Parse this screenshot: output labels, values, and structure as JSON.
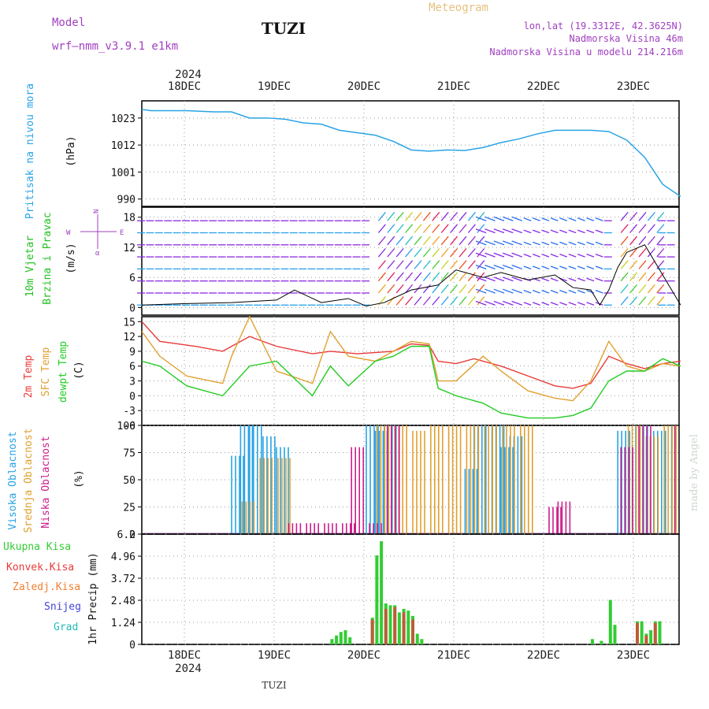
{
  "header": {
    "model_label": "Model",
    "model_name": "wrf–nmm_v3.9.1  e1km",
    "station": "TUZI",
    "product": "Meteogram",
    "lonlat": "lon,lat (19.3312E, 42.3625N)",
    "elevation": "Nadmorska Visina 46m",
    "model_elevation": "Nadmorska Visina u modelu 214.216m",
    "footer_station": "TUZI",
    "credit": "made by Angel",
    "year": "2024"
  },
  "colors": {
    "pressure": "#29a3e6",
    "wind_label": "#22c022",
    "temp2m": "#e83a3a",
    "sfc": "#e0a030",
    "dewpt": "#22cc22",
    "high_cloud": "#29a3e6",
    "mid_cloud": "#e0a030",
    "low_cloud": "#cc1e8c",
    "total_precip": "#33cc33",
    "conv_precip": "#e83a3a",
    "frz_precip": "#f08030",
    "snow": "#4444dd",
    "grad": "#22bbbb",
    "wind_arrow": "#8a2be2",
    "mslp_label": "#29a3e6",
    "model_label": "#a040c0"
  },
  "chart_data": [
    {
      "type": "line",
      "title": "Pritisak na nivou mora",
      "ylabel": "(hPa)",
      "ylim": [
        987,
        1030
      ],
      "yticks": [
        990,
        1001,
        1012,
        1023
      ],
      "x_labels": [
        "18DEC",
        "19DEC",
        "20DEC",
        "21DEC",
        "22DEC",
        "23DEC"
      ],
      "series": [
        {
          "name": "mslp",
          "x": [
            0,
            0.1,
            0.5,
            0.8,
            1.0,
            1.2,
            1.4,
            1.6,
            1.8,
            2.0,
            2.2,
            2.4,
            2.6,
            2.8,
            3.0,
            3.2,
            3.4,
            3.6,
            3.8,
            4.0,
            4.2,
            4.4,
            4.6,
            4.8,
            5.0,
            5.2,
            5.4,
            5.6,
            5.8,
            6.0
          ],
          "values": [
            1026.5,
            1026,
            1026,
            1025.5,
            1025.5,
            1023,
            1023,
            1022.5,
            1021,
            1020.5,
            1018,
            1017,
            1016,
            1013.5,
            1010,
            1009.5,
            1010,
            1009.8,
            1011,
            1013,
            1014.5,
            1016.5,
            1018,
            1018,
            1018,
            1017.5,
            1014,
            1007,
            996,
            991
          ]
        }
      ]
    },
    {
      "type": "scatter",
      "title": "10m Vjetar Brzina i Pravac",
      "ylabel": "(m/s)",
      "ylim": [
        -1.5,
        20
      ],
      "yticks": [
        0,
        6,
        12,
        18
      ],
      "legend_compass": [
        "N",
        "E",
        "W",
        "α"
      ],
      "series": [
        {
          "name": "wind_speed",
          "x": [
            0,
            0.5,
            1.0,
            1.5,
            1.7,
            2.0,
            2.3,
            2.5,
            2.7,
            3.0,
            3.3,
            3.5,
            3.8,
            4.0,
            4.3,
            4.6,
            4.8,
            5.0,
            5.1,
            5.2,
            5.3,
            5.4,
            5.6,
            6.0
          ],
          "values": [
            0.5,
            0.8,
            1.0,
            1.5,
            3.5,
            1.0,
            1.8,
            0.3,
            1.0,
            3.5,
            4.5,
            7.5,
            6.0,
            7.0,
            5.5,
            6.5,
            4.0,
            3.5,
            0.5,
            3.5,
            8.0,
            11.0,
            12.5,
            0.5
          ]
        }
      ]
    },
    {
      "type": "line",
      "title": "2m Temp / SFC Temp / dewpt Temp",
      "ylabel": "(C)",
      "ylim": [
        -6,
        16
      ],
      "yticks": [
        -6,
        -3,
        0,
        3,
        6,
        9,
        12,
        15
      ],
      "series": [
        {
          "name": "2m Temp",
          "x": [
            0,
            0.2,
            0.6,
            0.9,
            1.2,
            1.5,
            1.9,
            2.1,
            2.4,
            2.8,
            3.0,
            3.2,
            3.3,
            3.5,
            3.7,
            4.0,
            4.3,
            4.6,
            4.8,
            5.0,
            5.2,
            5.4,
            5.6,
            5.8,
            6.0
          ],
          "values": [
            15,
            11,
            10,
            9,
            12,
            10,
            8.5,
            9,
            8.5,
            9,
            10.5,
            10.2,
            7,
            6.5,
            7.5,
            6,
            4,
            2,
            1.5,
            2.5,
            8,
            6.5,
            5.5,
            6.5,
            7
          ]
        },
        {
          "name": "SFC Temp",
          "x": [
            0,
            0.2,
            0.5,
            0.9,
            1.0,
            1.2,
            1.5,
            1.9,
            2.1,
            2.3,
            2.6,
            2.8,
            3.0,
            3.2,
            3.3,
            3.5,
            3.8,
            4.0,
            4.3,
            4.6,
            4.8,
            5.0,
            5.2,
            5.4,
            5.6,
            5.8,
            6.0
          ],
          "values": [
            13,
            8,
            4,
            2.5,
            8,
            16,
            5,
            2.5,
            13,
            8,
            7,
            9,
            11,
            10.5,
            3,
            3,
            8,
            5,
            1,
            -0.5,
            -1,
            3,
            11,
            6,
            5,
            6.5,
            6
          ]
        },
        {
          "name": "dewpt Temp",
          "x": [
            0,
            0.2,
            0.5,
            0.9,
            1.2,
            1.5,
            1.9,
            2.1,
            2.3,
            2.6,
            2.8,
            3.0,
            3.2,
            3.3,
            3.5,
            3.8,
            4.0,
            4.3,
            4.6,
            4.8,
            5.0,
            5.2,
            5.4,
            5.6,
            5.8,
            6.0
          ],
          "values": [
            7,
            6,
            2,
            0,
            6,
            7,
            0,
            6,
            2,
            7,
            8,
            10,
            10,
            1.5,
            0,
            -1.5,
            -3.5,
            -4.5,
            -4.5,
            -4,
            -2.5,
            3,
            5,
            5,
            7.5,
            6
          ]
        }
      ]
    },
    {
      "type": "bar",
      "title": "Visoka / Srednja / Niska Oblacnost",
      "ylabel": "(%)",
      "ylim": [
        0,
        100
      ],
      "yticks": [
        0,
        25,
        50,
        75,
        100
      ],
      "series": [
        {
          "name": "Visoka Oblacnost",
          "x": [
            1.0,
            1.1,
            1.2,
            1.35,
            1.5,
            2.5,
            2.6,
            2.7,
            3.6,
            3.7,
            3.9,
            4.0,
            4.1,
            5.3,
            5.5,
            5.7,
            5.9
          ],
          "values": [
            72,
            100,
            100,
            90,
            80,
            100,
            95,
            100,
            60,
            100,
            100,
            80,
            90,
            95,
            100,
            95,
            100
          ]
        },
        {
          "name": "Srednja Oblacnost",
          "x": [
            1.1,
            1.3,
            1.5,
            2.6,
            2.8,
            3.0,
            3.2,
            3.4,
            3.6,
            3.8,
            4.0,
            4.2,
            5.4,
            5.6,
            5.8
          ],
          "values": [
            30,
            70,
            70,
            100,
            100,
            95,
            100,
            100,
            100,
            100,
            100,
            100,
            100,
            90,
            100
          ]
        },
        {
          "name": "Niska Oblacnost",
          "x": [
            1.6,
            1.8,
            2.0,
            2.2,
            2.3,
            2.5,
            2.7,
            4.5,
            4.6,
            5.3,
            5.5,
            5.9
          ],
          "values": [
            10,
            10,
            10,
            10,
            80,
            10,
            100,
            25,
            30,
            80,
            100,
            100
          ]
        }
      ]
    },
    {
      "type": "bar",
      "title": "Ukupna / Konvek. / Zaledj. Kisa, Snijeg, Grad",
      "ylabel": "1hr Precip (mm)",
      "ylim": [
        0,
        6.2
      ],
      "yticks": [
        0,
        1.24,
        2.48,
        3.72,
        4.96,
        6.2
      ],
      "series": [
        {
          "name": "Ukupna Kisa",
          "x": [
            2.1,
            2.15,
            2.2,
            2.25,
            2.3,
            2.55,
            2.6,
            2.65,
            2.7,
            2.75,
            2.8,
            2.85,
            2.9,
            2.95,
            3.0,
            3.05,
            3.1,
            5.0,
            5.1,
            5.2,
            5.25,
            5.5,
            5.55,
            5.6,
            5.65,
            5.7,
            5.75
          ],
          "values": [
            0.3,
            0.5,
            0.7,
            0.8,
            0.4,
            1.5,
            5.0,
            5.8,
            2.3,
            2.2,
            2.2,
            1.8,
            2.0,
            1.9,
            1.6,
            0.6,
            0.3,
            0.3,
            0.2,
            2.5,
            1.1,
            1.3,
            1.3,
            0.6,
            0.8,
            1.3,
            1.3
          ]
        },
        {
          "name": "Konvek.Kisa",
          "x": [
            2.55,
            2.7,
            2.8,
            2.9,
            3.0,
            5.5,
            5.6,
            5.7
          ],
          "values": [
            1.4,
            2.0,
            2.1,
            1.8,
            1.4,
            1.2,
            0.5,
            1.2
          ]
        }
      ]
    }
  ],
  "panel_labels": {
    "p1": [
      "Pritisak na nivou mora",
      "(hPa)"
    ],
    "p2": [
      "10m Vjetar",
      "Brzina i Pravac",
      "(m/s)"
    ],
    "p3": [
      "2m Temp",
      "SFC Temp",
      "dewpt Temp",
      "(C)"
    ],
    "p4": [
      "Visoka Oblacnost",
      "Srednja Oblacnost",
      "Niska Oblacnost",
      "(%)"
    ],
    "p5": [
      "Ukupna  Kisa",
      "Konvek.Kisa",
      "Zaledj.Kisa",
      "Snijeg",
      "Grad",
      "1hr Precip (mm)"
    ]
  }
}
